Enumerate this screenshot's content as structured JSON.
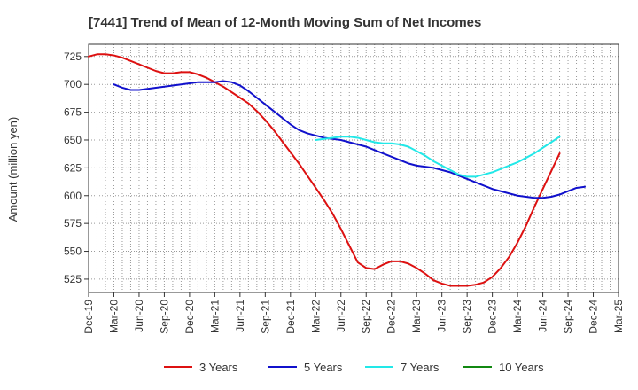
{
  "chart_data": {
    "type": "line",
    "title": "[7441]  Trend of Mean of 12-Month Moving Sum of Net Incomes",
    "xlabel": "",
    "ylabel": "Amount (million yen)",
    "ylim": [
      513,
      736
    ],
    "yticks": [
      525,
      550,
      575,
      600,
      625,
      650,
      675,
      700,
      725
    ],
    "grid": true,
    "legend_position": "bottom",
    "x_tick_labels": [
      "Dec-19",
      "Mar-20",
      "Jun-20",
      "Sep-20",
      "Dec-20",
      "Mar-21",
      "Jun-21",
      "Sep-21",
      "Dec-21",
      "Mar-22",
      "Jun-22",
      "Sep-22",
      "Dec-22",
      "Mar-23",
      "Jun-23",
      "Sep-23",
      "Dec-23",
      "Mar-24",
      "Jun-24",
      "Sep-24",
      "Dec-24",
      "Mar-25"
    ],
    "series": [
      {
        "name": "3 Years",
        "color": "#dd1111",
        "start_index": 0,
        "values": [
          725,
          727,
          727,
          726,
          724,
          721,
          718,
          715,
          712,
          710,
          710,
          711,
          711,
          709,
          706,
          702,
          698,
          693,
          688,
          683,
          676,
          668,
          659,
          649,
          639,
          629,
          618,
          607,
          596,
          584,
          570,
          555,
          540,
          535,
          534,
          538,
          541,
          541,
          539,
          535,
          530,
          524,
          521,
          519,
          519,
          519,
          520,
          522,
          527,
          535,
          545,
          558,
          573,
          590,
          606,
          622,
          638
        ]
      },
      {
        "name": "5 Years",
        "color": "#1111cc",
        "start_index": 3,
        "values": [
          700,
          697,
          695,
          695,
          696,
          697,
          698,
          699,
          700,
          701,
          702,
          702,
          702,
          703,
          702,
          699,
          694,
          688,
          682,
          676,
          670,
          664,
          659,
          656,
          654,
          652,
          651,
          650,
          648,
          646,
          644,
          641,
          638,
          635,
          632,
          629,
          627,
          626,
          625,
          623,
          621,
          618,
          615,
          612,
          609,
          606,
          604,
          602,
          600,
          599,
          598,
          598,
          599,
          601,
          604,
          607,
          608
        ]
      },
      {
        "name": "7 Years",
        "color": "#22e8e8",
        "start_index": 27,
        "values": [
          650,
          651,
          652,
          653,
          653,
          652,
          650,
          648,
          647,
          647,
          646,
          644,
          640,
          636,
          631,
          627,
          623,
          619,
          617,
          617,
          619,
          621,
          624,
          627,
          630,
          634,
          638,
          643,
          648,
          653
        ]
      },
      {
        "name": "10 Years",
        "color": "#118811",
        "start_index": 0,
        "values": []
      }
    ]
  }
}
